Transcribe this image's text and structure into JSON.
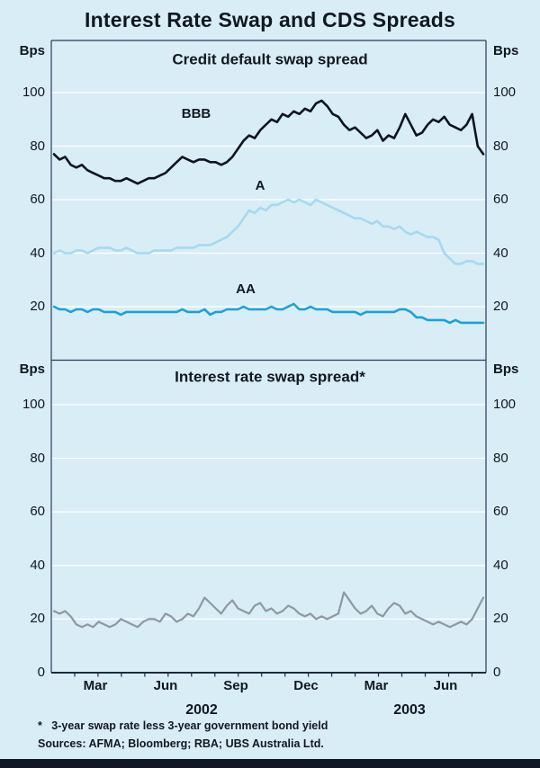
{
  "title": "Interest Rate Swap and CDS Spreads",
  "panels": {
    "top": {
      "title": "Credit default swap spread",
      "unit": "Bps",
      "yticks": [
        100,
        80,
        60,
        40,
        20
      ]
    },
    "bottom": {
      "title": "Interest rate swap spread*",
      "unit": "Bps",
      "yticks": [
        100,
        80,
        60,
        40,
        20,
        0
      ]
    }
  },
  "x_axis": {
    "months": [
      "Mar",
      "Jun",
      "Sep",
      "Dec",
      "Mar",
      "Jun"
    ],
    "years": [
      "2002",
      "2003"
    ]
  },
  "footnote": "*   3-year swap rate less 3-year government bond yield",
  "sources": "Sources: AFMA; Bloomberg; RBA; UBS Australia Ltd.",
  "colors": {
    "background": "#d9edf7",
    "grid": "#ffffff",
    "frame": "#2a3d55",
    "axis": "#1b2a3d",
    "text": "#101820",
    "footer_bar": "#101826"
  },
  "chart_data": [
    {
      "type": "line",
      "title": "Credit default swap spread",
      "ylabel": "Bps",
      "ylim": [
        0,
        120
      ],
      "x_range": "Jan 2002 - Jul 2003, weekly",
      "grid": true,
      "legend_position": "inline-labels",
      "series": [
        {
          "name": "BBB",
          "color": "#0d1420",
          "values": [
            77,
            75,
            76,
            73,
            72,
            73,
            71,
            70,
            69,
            68,
            68,
            67,
            67,
            68,
            67,
            66,
            67,
            68,
            68,
            69,
            70,
            72,
            74,
            76,
            75,
            74,
            75,
            75,
            74,
            74,
            73,
            74,
            76,
            79,
            82,
            84,
            83,
            86,
            88,
            90,
            89,
            92,
            91,
            93,
            92,
            94,
            93,
            96,
            97,
            95,
            92,
            91,
            88,
            86,
            87,
            85,
            83,
            84,
            86,
            82,
            84,
            83,
            87,
            92,
            88,
            84,
            85,
            88,
            90,
            89,
            91,
            88,
            87,
            86,
            88,
            92,
            80,
            77
          ]
        },
        {
          "name": "A",
          "color": "#a8d8ee",
          "values": [
            40,
            41,
            40,
            40,
            41,
            41,
            40,
            41,
            42,
            42,
            42,
            41,
            41,
            42,
            41,
            40,
            40,
            40,
            41,
            41,
            41,
            41,
            42,
            42,
            42,
            42,
            43,
            43,
            43,
            44,
            45,
            46,
            48,
            50,
            53,
            56,
            55,
            57,
            56,
            58,
            58,
            59,
            60,
            59,
            60,
            59,
            58,
            60,
            59,
            58,
            57,
            56,
            55,
            54,
            53,
            53,
            52,
            51,
            52,
            50,
            50,
            49,
            50,
            48,
            47,
            48,
            47,
            46,
            46,
            45,
            40,
            38,
            36,
            36,
            37,
            37,
            36,
            36
          ]
        },
        {
          "name": "AA",
          "color": "#1aa2d8",
          "values": [
            20,
            19,
            19,
            18,
            19,
            19,
            18,
            19,
            19,
            18,
            18,
            18,
            17,
            18,
            18,
            18,
            18,
            18,
            18,
            18,
            18,
            18,
            18,
            19,
            18,
            18,
            18,
            19,
            17,
            18,
            18,
            19,
            19,
            19,
            20,
            19,
            19,
            19,
            19,
            20,
            19,
            19,
            20,
            21,
            19,
            19,
            20,
            19,
            19,
            19,
            18,
            18,
            18,
            18,
            18,
            17,
            18,
            18,
            18,
            18,
            18,
            18,
            19,
            19,
            18,
            16,
            16,
            15,
            15,
            15,
            15,
            14,
            15,
            14,
            14,
            14,
            14,
            14
          ]
        }
      ]
    },
    {
      "type": "line",
      "title": "Interest rate swap spread*",
      "ylabel": "Bps",
      "ylim": [
        0,
        120
      ],
      "x_range": "Jan 2002 - Jul 2003, weekly",
      "grid": true,
      "series": [
        {
          "name": "Swap spread",
          "color": "#8d99a2",
          "values": [
            23,
            22,
            23,
            21,
            18,
            17,
            18,
            17,
            19,
            18,
            17,
            18,
            20,
            19,
            18,
            17,
            19,
            20,
            20,
            19,
            22,
            21,
            19,
            20,
            22,
            21,
            24,
            28,
            26,
            24,
            22,
            25,
            27,
            24,
            23,
            22,
            25,
            26,
            23,
            24,
            22,
            23,
            25,
            24,
            22,
            21,
            22,
            20,
            21,
            20,
            21,
            22,
            30,
            27,
            24,
            22,
            23,
            25,
            22,
            21,
            24,
            26,
            25,
            22,
            23,
            21,
            20,
            19,
            18,
            19,
            18,
            17,
            18,
            19,
            18,
            20,
            24,
            28
          ]
        }
      ]
    }
  ]
}
